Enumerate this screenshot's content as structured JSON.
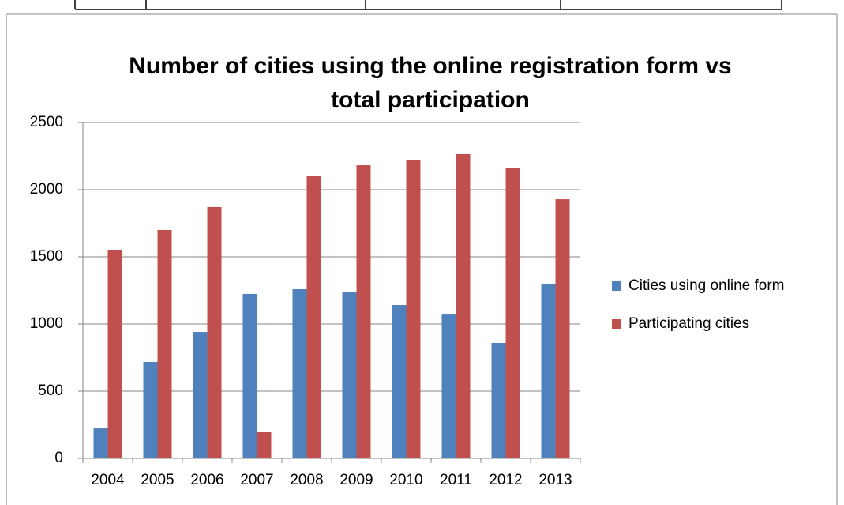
{
  "chart_data": {
    "type": "bar",
    "title": [
      "Number of cities using the online registration form vs",
      "total participation"
    ],
    "categories": [
      "2004",
      "2005",
      "2006",
      "2007",
      "2008",
      "2009",
      "2010",
      "2011",
      "2012",
      "2013"
    ],
    "series": [
      {
        "name": "Cities using online form",
        "color": "#4f81bd",
        "values": [
          223,
          718,
          941,
          1224,
          1259,
          1235,
          1141,
          1076,
          859,
          1300
        ]
      },
      {
        "name": "Participating cities",
        "color": "#c0504d",
        "values": [
          1553,
          1700,
          1871,
          200,
          2100,
          2182,
          2220,
          2265,
          2159,
          1929
        ]
      }
    ],
    "ylim": [
      0,
      2500
    ],
    "yticks": [
      0,
      500,
      1000,
      1500,
      2000,
      2500
    ],
    "grid": true,
    "legend": "right"
  }
}
